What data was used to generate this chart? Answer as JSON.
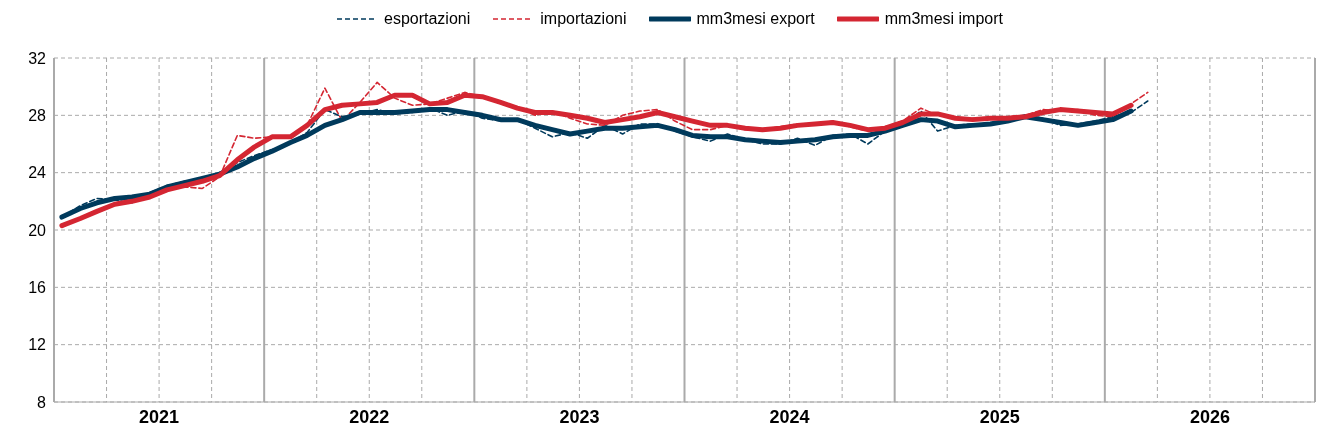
{
  "chart_data": {
    "type": "line",
    "x": [
      "2021-01-15",
      "2021-02-15",
      "2021-03-15",
      "2021-04-15",
      "2021-05-15",
      "2021-06-15",
      "2021-07-15",
      "2021-08-15",
      "2021-09-15",
      "2021-10-15",
      "2021-11-15",
      "2021-12-15",
      "2022-01-15",
      "2022-02-15",
      "2022-03-15",
      "2022-04-15",
      "2022-05-15",
      "2022-06-15",
      "2022-07-15",
      "2022-08-15",
      "2022-09-15",
      "2022-10-15",
      "2022-11-15",
      "2022-12-15",
      "2023-01-15",
      "2023-02-15",
      "2023-03-15",
      "2023-04-15",
      "2023-05-15",
      "2023-06-15",
      "2023-07-15",
      "2023-08-15",
      "2023-09-15",
      "2023-10-15",
      "2023-11-15",
      "2023-12-15",
      "2024-01-15",
      "2024-02-15",
      "2024-03-15",
      "2024-04-15",
      "2024-05-15",
      "2024-06-15",
      "2024-07-15",
      "2024-08-15",
      "2024-09-15",
      "2024-10-15",
      "2024-11-15",
      "2024-12-15",
      "2025-01-15",
      "2025-02-15",
      "2025-03-15",
      "2025-04-15",
      "2025-05-15",
      "2025-06-15",
      "2025-07-15",
      "2025-08-15",
      "2025-09-15",
      "2025-10-15",
      "2025-11-15",
      "2025-12-15",
      "2026-01-15",
      "2026-02-15",
      "2026-03-15"
    ],
    "series": [
      {
        "name": "esportazioni",
        "color": "#003a5c",
        "line_style": "dashed",
        "values": [
          20.9,
          21.7,
          22.2,
          22.1,
          21.9,
          22.6,
          23.1,
          23.4,
          23.5,
          24.0,
          24.7,
          25.2,
          25.6,
          26.1,
          26.8,
          28.4,
          27.9,
          28.1,
          28.4,
          28.1,
          28.2,
          28.5,
          28.0,
          28.3,
          27.8,
          27.6,
          27.7,
          27.1,
          26.5,
          26.8,
          26.4,
          27.3,
          26.7,
          27.4,
          27.4,
          26.9,
          26.5,
          26.2,
          26.7,
          26.3,
          26.0,
          26.0,
          26.4,
          25.9,
          26.6,
          26.7,
          26.0,
          26.9,
          27.3,
          28.3,
          26.9,
          27.3,
          27.4,
          27.4,
          27.6,
          28.0,
          27.8,
          27.3,
          27.4,
          27.6,
          27.9,
          28.2,
          29.0
        ]
      },
      {
        "name": "importazioni",
        "color": "#d42632",
        "line_style": "dashed",
        "values": [
          20.2,
          20.8,
          21.3,
          21.8,
          22.1,
          22.4,
          22.8,
          23.0,
          22.9,
          23.7,
          26.6,
          26.4,
          26.5,
          26.5,
          27.3,
          29.9,
          27.6,
          28.9,
          30.3,
          29.2,
          28.7,
          28.8,
          29.2,
          29.6,
          29.3,
          28.9,
          28.6,
          28.0,
          28.3,
          27.8,
          27.4,
          27.3,
          28.0,
          28.3,
          28.4,
          27.6,
          27.0,
          27.0,
          27.3,
          27.0,
          27.0,
          27.2,
          27.4,
          27.4,
          27.6,
          27.2,
          26.9,
          27.2,
          27.6,
          28.5,
          28.0,
          27.8,
          27.8,
          27.8,
          27.9,
          28.0,
          28.4,
          28.3,
          28.4,
          28.0,
          27.9,
          28.8,
          29.6
        ]
      },
      {
        "name": "mm3mesi export",
        "color": "#003a5c",
        "line_style": "solid",
        "values": [
          20.9,
          21.5,
          21.9,
          22.2,
          22.3,
          22.5,
          23.0,
          23.3,
          23.6,
          23.9,
          24.4,
          25.0,
          25.5,
          26.1,
          26.6,
          27.3,
          27.7,
          28.2,
          28.2,
          28.2,
          28.3,
          28.4,
          28.4,
          28.2,
          28.0,
          27.7,
          27.7,
          27.3,
          27.0,
          26.7,
          26.9,
          27.1,
          27.1,
          27.2,
          27.3,
          27.0,
          26.6,
          26.5,
          26.5,
          26.3,
          26.2,
          26.1,
          26.2,
          26.3,
          26.5,
          26.6,
          26.6,
          26.9,
          27.3,
          27.7,
          27.6,
          27.2,
          27.3,
          27.4,
          27.6,
          27.9,
          27.7,
          27.5,
          27.3,
          27.5,
          27.7,
          28.3,
          null
        ]
      },
      {
        "name": "mm3mesi import",
        "color": "#d42632",
        "line_style": "solid",
        "values": [
          20.3,
          20.8,
          21.3,
          21.8,
          22.0,
          22.3,
          22.8,
          23.1,
          23.4,
          23.8,
          24.9,
          25.8,
          26.5,
          26.5,
          27.3,
          28.4,
          28.7,
          28.8,
          28.9,
          29.4,
          29.4,
          28.8,
          28.9,
          29.4,
          29.3,
          28.9,
          28.5,
          28.2,
          28.2,
          28.0,
          27.8,
          27.5,
          27.7,
          27.9,
          28.2,
          27.9,
          27.6,
          27.3,
          27.3,
          27.1,
          27.0,
          27.1,
          27.3,
          27.4,
          27.5,
          27.3,
          27.0,
          27.1,
          27.5,
          28.1,
          28.1,
          27.8,
          27.7,
          27.8,
          27.8,
          27.9,
          28.2,
          28.4,
          28.3,
          28.2,
          28.1,
          28.7,
          null
        ]
      }
    ],
    "xlim": [
      "2021-01",
      "2027-01"
    ],
    "xticks": [
      {
        "value": "2021-07",
        "label": "2021"
      },
      {
        "value": "2022-07",
        "label": "2022"
      },
      {
        "value": "2023-07",
        "label": "2023"
      },
      {
        "value": "2024-07",
        "label": "2024"
      },
      {
        "value": "2025-07",
        "label": "2025"
      },
      {
        "value": "2026-07",
        "label": "2026"
      }
    ],
    "ylim": [
      8,
      32
    ],
    "yticks": [
      8,
      12,
      16,
      20,
      24,
      28,
      32
    ],
    "grid": true,
    "legend": "top",
    "marker": "none"
  }
}
